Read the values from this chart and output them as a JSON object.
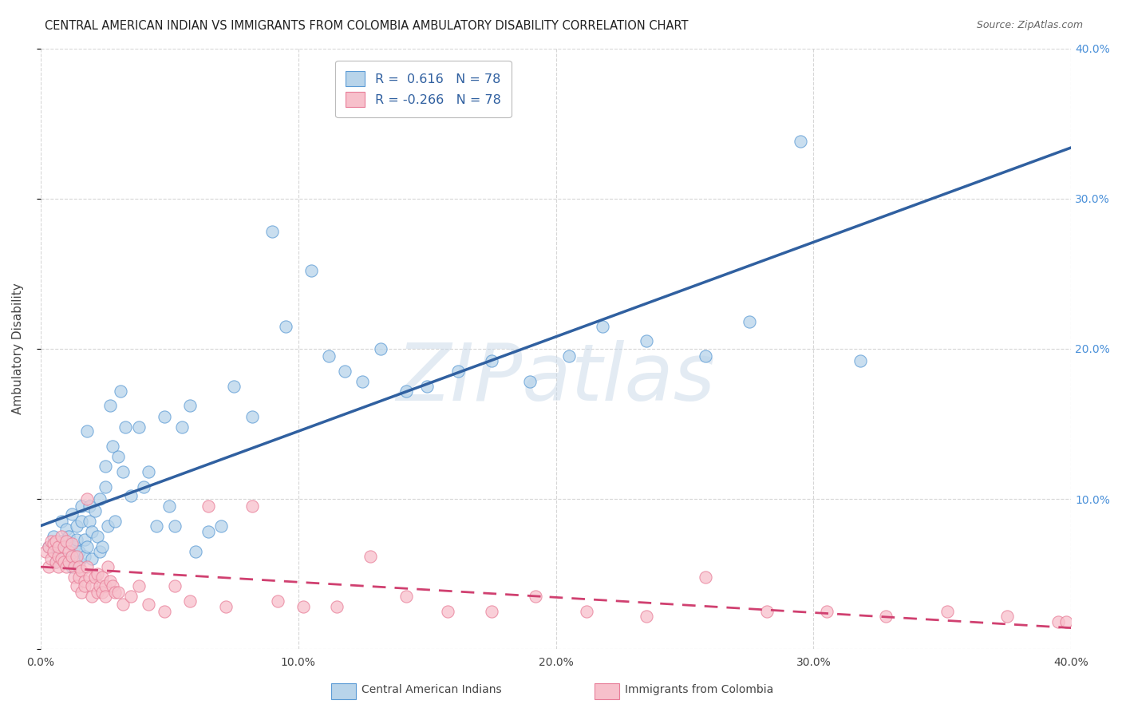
{
  "title": "CENTRAL AMERICAN INDIAN VS IMMIGRANTS FROM COLOMBIA AMBULATORY DISABILITY CORRELATION CHART",
  "source": "Source: ZipAtlas.com",
  "ylabel": "Ambulatory Disability",
  "watermark": "ZIPatlas",
  "xlim": [
    0.0,
    0.4
  ],
  "ylim": [
    0.0,
    0.4
  ],
  "blue_R": 0.616,
  "blue_N": 78,
  "pink_R": -0.266,
  "pink_N": 78,
  "blue_fill_color": "#b8d4ea",
  "pink_fill_color": "#f7c0cb",
  "blue_edge_color": "#5b9bd5",
  "pink_edge_color": "#e87d98",
  "blue_line_color": "#3060a0",
  "pink_line_color": "#d04070",
  "ytick_color": "#4a90d9",
  "grid_color": "#cccccc",
  "background_color": "#ffffff",
  "blue_scatter": [
    [
      0.003,
      0.068
    ],
    [
      0.005,
      0.075
    ],
    [
      0.006,
      0.058
    ],
    [
      0.007,
      0.065
    ],
    [
      0.008,
      0.072
    ],
    [
      0.008,
      0.085
    ],
    [
      0.009,
      0.06
    ],
    [
      0.01,
      0.08
    ],
    [
      0.01,
      0.058
    ],
    [
      0.011,
      0.07
    ],
    [
      0.011,
      0.075
    ],
    [
      0.012,
      0.055
    ],
    [
      0.012,
      0.09
    ],
    [
      0.013,
      0.068
    ],
    [
      0.013,
      0.062
    ],
    [
      0.014,
      0.073
    ],
    [
      0.014,
      0.082
    ],
    [
      0.015,
      0.065
    ],
    [
      0.015,
      0.058
    ],
    [
      0.016,
      0.085
    ],
    [
      0.016,
      0.095
    ],
    [
      0.017,
      0.062
    ],
    [
      0.017,
      0.073
    ],
    [
      0.018,
      0.145
    ],
    [
      0.018,
      0.068
    ],
    [
      0.019,
      0.095
    ],
    [
      0.019,
      0.085
    ],
    [
      0.02,
      0.078
    ],
    [
      0.02,
      0.06
    ],
    [
      0.021,
      0.092
    ],
    [
      0.022,
      0.075
    ],
    [
      0.023,
      0.065
    ],
    [
      0.023,
      0.1
    ],
    [
      0.024,
      0.068
    ],
    [
      0.025,
      0.122
    ],
    [
      0.025,
      0.108
    ],
    [
      0.026,
      0.082
    ],
    [
      0.027,
      0.162
    ],
    [
      0.028,
      0.135
    ],
    [
      0.029,
      0.085
    ],
    [
      0.03,
      0.128
    ],
    [
      0.031,
      0.172
    ],
    [
      0.032,
      0.118
    ],
    [
      0.033,
      0.148
    ],
    [
      0.035,
      0.102
    ],
    [
      0.038,
      0.148
    ],
    [
      0.04,
      0.108
    ],
    [
      0.042,
      0.118
    ],
    [
      0.045,
      0.082
    ],
    [
      0.048,
      0.155
    ],
    [
      0.05,
      0.095
    ],
    [
      0.052,
      0.082
    ],
    [
      0.055,
      0.148
    ],
    [
      0.058,
      0.162
    ],
    [
      0.06,
      0.065
    ],
    [
      0.065,
      0.078
    ],
    [
      0.07,
      0.082
    ],
    [
      0.075,
      0.175
    ],
    [
      0.082,
      0.155
    ],
    [
      0.09,
      0.278
    ],
    [
      0.095,
      0.215
    ],
    [
      0.105,
      0.252
    ],
    [
      0.112,
      0.195
    ],
    [
      0.118,
      0.185
    ],
    [
      0.125,
      0.178
    ],
    [
      0.132,
      0.2
    ],
    [
      0.142,
      0.172
    ],
    [
      0.15,
      0.175
    ],
    [
      0.162,
      0.185
    ],
    [
      0.175,
      0.192
    ],
    [
      0.19,
      0.178
    ],
    [
      0.205,
      0.195
    ],
    [
      0.218,
      0.215
    ],
    [
      0.235,
      0.205
    ],
    [
      0.258,
      0.195
    ],
    [
      0.275,
      0.218
    ],
    [
      0.295,
      0.338
    ],
    [
      0.318,
      0.192
    ]
  ],
  "pink_scatter": [
    [
      0.002,
      0.065
    ],
    [
      0.003,
      0.068
    ],
    [
      0.003,
      0.055
    ],
    [
      0.004,
      0.072
    ],
    [
      0.004,
      0.06
    ],
    [
      0.005,
      0.07
    ],
    [
      0.005,
      0.065
    ],
    [
      0.006,
      0.058
    ],
    [
      0.006,
      0.072
    ],
    [
      0.007,
      0.062
    ],
    [
      0.007,
      0.068
    ],
    [
      0.007,
      0.055
    ],
    [
      0.008,
      0.075
    ],
    [
      0.008,
      0.06
    ],
    [
      0.009,
      0.068
    ],
    [
      0.009,
      0.058
    ],
    [
      0.01,
      0.072
    ],
    [
      0.01,
      0.055
    ],
    [
      0.011,
      0.065
    ],
    [
      0.011,
      0.058
    ],
    [
      0.012,
      0.07
    ],
    [
      0.012,
      0.062
    ],
    [
      0.013,
      0.055
    ],
    [
      0.013,
      0.048
    ],
    [
      0.014,
      0.062
    ],
    [
      0.014,
      0.042
    ],
    [
      0.015,
      0.048
    ],
    [
      0.015,
      0.055
    ],
    [
      0.016,
      0.052
    ],
    [
      0.016,
      0.038
    ],
    [
      0.017,
      0.045
    ],
    [
      0.017,
      0.042
    ],
    [
      0.018,
      0.1
    ],
    [
      0.018,
      0.055
    ],
    [
      0.019,
      0.048
    ],
    [
      0.02,
      0.042
    ],
    [
      0.02,
      0.035
    ],
    [
      0.021,
      0.048
    ],
    [
      0.022,
      0.038
    ],
    [
      0.022,
      0.05
    ],
    [
      0.023,
      0.042
    ],
    [
      0.024,
      0.038
    ],
    [
      0.024,
      0.048
    ],
    [
      0.025,
      0.042
    ],
    [
      0.025,
      0.035
    ],
    [
      0.026,
      0.055
    ],
    [
      0.027,
      0.045
    ],
    [
      0.028,
      0.042
    ],
    [
      0.029,
      0.038
    ],
    [
      0.03,
      0.038
    ],
    [
      0.032,
      0.03
    ],
    [
      0.035,
      0.035
    ],
    [
      0.038,
      0.042
    ],
    [
      0.042,
      0.03
    ],
    [
      0.048,
      0.025
    ],
    [
      0.052,
      0.042
    ],
    [
      0.058,
      0.032
    ],
    [
      0.065,
      0.095
    ],
    [
      0.072,
      0.028
    ],
    [
      0.082,
      0.095
    ],
    [
      0.092,
      0.032
    ],
    [
      0.102,
      0.028
    ],
    [
      0.115,
      0.028
    ],
    [
      0.128,
      0.062
    ],
    [
      0.142,
      0.035
    ],
    [
      0.158,
      0.025
    ],
    [
      0.175,
      0.025
    ],
    [
      0.192,
      0.035
    ],
    [
      0.212,
      0.025
    ],
    [
      0.235,
      0.022
    ],
    [
      0.258,
      0.048
    ],
    [
      0.282,
      0.025
    ],
    [
      0.305,
      0.025
    ],
    [
      0.328,
      0.022
    ],
    [
      0.352,
      0.025
    ],
    [
      0.375,
      0.022
    ],
    [
      0.395,
      0.018
    ],
    [
      0.398,
      0.018
    ]
  ]
}
